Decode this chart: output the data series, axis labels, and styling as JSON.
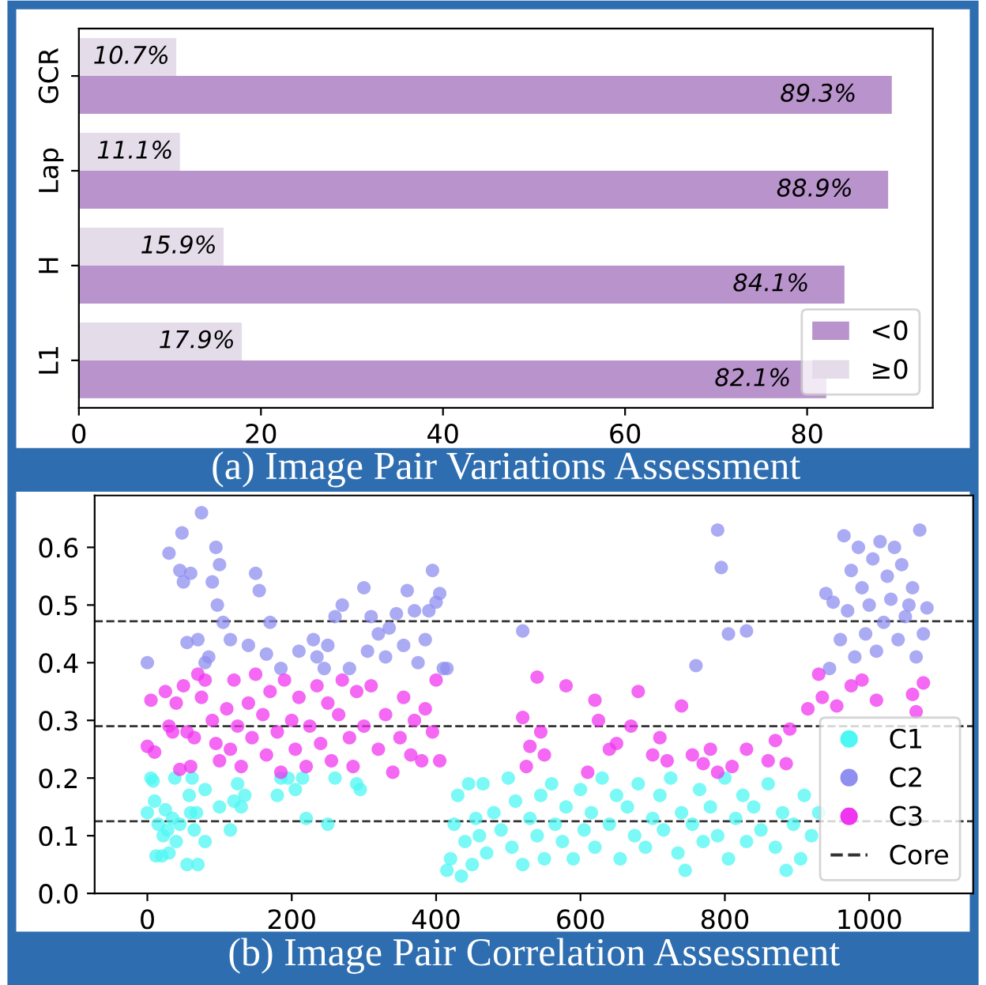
{
  "chart_data": [
    {
      "type": "bar",
      "orientation": "horizontal",
      "title": "(a) Image Pair Variations Assessment",
      "categories": [
        "GCR",
        "Lap",
        "H",
        "L1"
      ],
      "series": [
        {
          "name": "<0",
          "color": "#b993cc",
          "values": [
            89.3,
            88.9,
            84.1,
            82.1
          ],
          "value_labels": [
            "89.3%",
            "88.9%",
            "84.1%",
            "82.1%"
          ]
        },
        {
          "name": "≥0",
          "color": "#e5dcea",
          "values": [
            10.7,
            11.1,
            15.9,
            17.9
          ],
          "value_labels": [
            "10.7%",
            "11.1%",
            "15.9%",
            "17.9%"
          ]
        }
      ],
      "xlim": [
        0,
        93.8
      ],
      "xticks": [
        0,
        20,
        40,
        60,
        80
      ],
      "legend": "bottom right",
      "grid": false
    },
    {
      "type": "scatter",
      "title": "(b) Image Pair Correlation Assessment",
      "xlim": [
        -73,
        1144
      ],
      "ylim": [
        0,
        0.69
      ],
      "xticks": [
        0,
        200,
        400,
        600,
        800,
        1000
      ],
      "yticks": [
        {
          "value": 0,
          "label": "0.0"
        },
        0.1,
        0.2,
        0.3,
        0.4,
        0.5,
        0.6
      ],
      "legend": "bottom right",
      "grid": false,
      "marker": "circle",
      "ref_lines": [
        {
          "axis": "y",
          "value": 0.472,
          "label": "Core",
          "color": "#333333",
          "line_style": "dashed"
        },
        {
          "axis": "y",
          "value": 0.29,
          "color": "#333333",
          "line_style": "dashed"
        },
        {
          "axis": "y",
          "value": 0.125,
          "color": "#333333",
          "line_style": "dashed"
        }
      ],
      "series": [
        {
          "name": "C1",
          "color": "#4df7f3",
          "x": [
            0,
            5,
            8,
            10,
            12,
            15,
            20,
            22,
            25,
            28,
            30,
            35,
            38,
            40,
            45,
            55,
            58,
            60,
            62,
            65,
            68,
            70,
            80,
            80,
            100,
            115,
            120,
            125,
            130,
            135,
            180,
            185,
            195,
            205,
            215,
            220,
            250,
            260,
            290,
            295,
            415,
            420,
            425,
            430,
            435,
            440,
            445,
            450,
            455,
            460,
            465,
            470,
            480,
            490,
            500,
            505,
            510,
            520,
            530,
            540,
            545,
            550,
            560,
            565,
            575,
            580,
            590,
            600,
            605,
            615,
            620,
            630,
            640,
            650,
            655,
            665,
            675,
            680,
            690,
            700,
            710,
            715,
            725,
            735,
            740,
            745,
            755,
            765,
            770,
            780,
            790,
            800,
            805,
            815,
            825,
            830,
            840,
            850,
            860,
            870,
            880,
            885,
            895,
            905,
            910,
            920,
            930
          ],
          "values": [
            0.14,
            0.2,
            0.195,
            0.16,
            0.065,
            0.12,
            0.065,
            0.1,
            0.145,
            0.11,
            0.07,
            0.13,
            0.2,
            0.09,
            0.12,
            0.05,
            0.17,
            0.14,
            0.2,
            0.11,
            0.14,
            0.05,
            0.09,
            0.18,
            0.15,
            0.11,
            0.16,
            0.19,
            0.15,
            0.17,
            0.17,
            0.2,
            0.2,
            0.18,
            0.2,
            0.13,
            0.12,
            0.2,
            0.19,
            0.18,
            0.04,
            0.06,
            0.12,
            0.17,
            0.03,
            0.09,
            0.19,
            0.05,
            0.13,
            0.1,
            0.19,
            0.07,
            0.14,
            0.11,
            0.2,
            0.08,
            0.16,
            0.05,
            0.13,
            0.1,
            0.17,
            0.06,
            0.19,
            0.12,
            0.09,
            0.15,
            0.06,
            0.18,
            0.11,
            0.14,
            0.08,
            0.2,
            0.12,
            0.17,
            0.06,
            0.15,
            0.1,
            0.19,
            0.08,
            0.13,
            0.17,
            0.11,
            0.2,
            0.07,
            0.14,
            0.04,
            0.12,
            0.18,
            0.09,
            0.15,
            0.1,
            0.2,
            0.06,
            0.13,
            0.17,
            0.09,
            0.15,
            0.11,
            0.19,
            0.08,
            0.14,
            0.04,
            0.12,
            0.06,
            0.17,
            0.1,
            0.14
          ]
        },
        {
          "name": "C2",
          "color": "#8f8ff0",
          "x": [
            0,
            30,
            45,
            48,
            50,
            55,
            60,
            70,
            75,
            80,
            85,
            90,
            95,
            97,
            100,
            105,
            115,
            140,
            150,
            155,
            165,
            170,
            185,
            210,
            230,
            235,
            245,
            250,
            260,
            270,
            280,
            300,
            305,
            310,
            320,
            330,
            335,
            345,
            355,
            360,
            370,
            375,
            385,
            390,
            395,
            400,
            405,
            410,
            415,
            520,
            760,
            790,
            795,
            805,
            830,
            940,
            945,
            950,
            960,
            965,
            970,
            975,
            980,
            985,
            990,
            995,
            1000,
            1005,
            1010,
            1015,
            1020,
            1025,
            1030,
            1035,
            1040,
            1045,
            1050,
            1055,
            1060,
            1065,
            1070,
            1075,
            1080
          ],
          "values": [
            0.4,
            0.59,
            0.56,
            0.625,
            0.54,
            0.435,
            0.555,
            0.44,
            0.66,
            0.4,
            0.41,
            0.54,
            0.6,
            0.5,
            0.57,
            0.47,
            0.44,
            0.43,
            0.555,
            0.525,
            0.415,
            0.47,
            0.39,
            0.42,
            0.44,
            0.41,
            0.39,
            0.43,
            0.48,
            0.5,
            0.39,
            0.53,
            0.42,
            0.48,
            0.45,
            0.41,
            0.46,
            0.485,
            0.43,
            0.525,
            0.49,
            0.4,
            0.44,
            0.49,
            0.56,
            0.505,
            0.52,
            0.39,
            0.39,
            0.455,
            0.395,
            0.63,
            0.565,
            0.45,
            0.455,
            0.52,
            0.39,
            0.505,
            0.44,
            0.62,
            0.49,
            0.56,
            0.41,
            0.6,
            0.53,
            0.45,
            0.5,
            0.58,
            0.42,
            0.61,
            0.47,
            0.55,
            0.51,
            0.6,
            0.44,
            0.57,
            0.48,
            0.5,
            0.53,
            0.41,
            0.63,
            0.45,
            0.495
          ]
        },
        {
          "name": "C3",
          "color": "#f035f0",
          "x": [
            0,
            5,
            10,
            25,
            30,
            35,
            40,
            45,
            50,
            55,
            60,
            65,
            70,
            75,
            80,
            90,
            95,
            100,
            110,
            115,
            120,
            125,
            130,
            140,
            145,
            150,
            160,
            165,
            170,
            180,
            185,
            190,
            200,
            205,
            210,
            220,
            225,
            235,
            240,
            250,
            255,
            265,
            270,
            280,
            285,
            290,
            300,
            310,
            320,
            330,
            340,
            350,
            355,
            365,
            370,
            380,
            385,
            395,
            400,
            405,
            520,
            525,
            530,
            540,
            545,
            550,
            580,
            610,
            620,
            625,
            640,
            650,
            670,
            680,
            700,
            710,
            720,
            740,
            755,
            770,
            780,
            790,
            810,
            830,
            860,
            870,
            885,
            890,
            915,
            930,
            935,
            955,
            975,
            990,
            1010,
            1060,
            1065,
            1075
          ],
          "values": [
            0.255,
            0.335,
            0.245,
            0.35,
            0.29,
            0.28,
            0.33,
            0.215,
            0.36,
            0.28,
            0.22,
            0.27,
            0.38,
            0.34,
            0.37,
            0.3,
            0.26,
            0.23,
            0.32,
            0.25,
            0.37,
            0.29,
            0.22,
            0.33,
            0.27,
            0.38,
            0.31,
            0.24,
            0.35,
            0.28,
            0.21,
            0.37,
            0.3,
            0.25,
            0.34,
            0.22,
            0.29,
            0.36,
            0.26,
            0.33,
            0.23,
            0.31,
            0.37,
            0.27,
            0.22,
            0.35,
            0.29,
            0.36,
            0.25,
            0.31,
            0.21,
            0.27,
            0.34,
            0.24,
            0.3,
            0.23,
            0.32,
            0.28,
            0.37,
            0.23,
            0.305,
            0.22,
            0.255,
            0.375,
            0.28,
            0.24,
            0.36,
            0.21,
            0.335,
            0.3,
            0.25,
            0.26,
            0.29,
            0.35,
            0.24,
            0.27,
            0.23,
            0.325,
            0.24,
            0.225,
            0.25,
            0.21,
            0.22,
            0.25,
            0.23,
            0.265,
            0.225,
            0.285,
            0.32,
            0.38,
            0.34,
            0.325,
            0.36,
            0.37,
            0.335,
            0.345,
            0.315,
            0.365
          ]
        }
      ]
    }
  ]
}
